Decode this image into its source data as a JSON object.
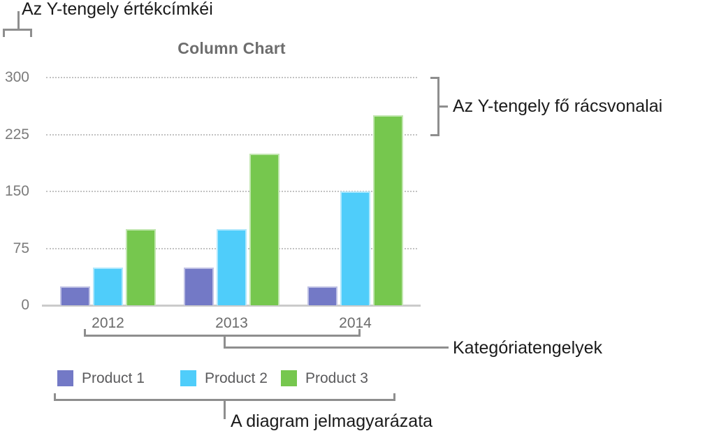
{
  "chart_data": {
    "type": "bar",
    "title": "Column Chart",
    "categories": [
      "2012",
      "2013",
      "2014"
    ],
    "series": [
      {
        "name": "Product 1",
        "color": "#7379C6",
        "values": [
          25,
          50,
          25
        ]
      },
      {
        "name": "Product 2",
        "color": "#4FCDFA",
        "values": [
          50,
          100,
          150
        ]
      },
      {
        "name": "Product 3",
        "color": "#76C74E",
        "values": [
          100,
          200,
          250
        ]
      }
    ],
    "y_ticks": [
      300,
      225,
      150,
      75,
      0
    ],
    "ylim": [
      0,
      300
    ],
    "grid": "horizontal-dotted",
    "legend_position": "bottom"
  },
  "callouts": {
    "y_axis_value_labels": "Az Y-tengely értékcímkéi",
    "y_axis_major_gridlines": "Az Y-tengely fő rácsvonalai",
    "category_axes": "Kategóriatengelyek",
    "chart_legend": "A diagram jelmagyarázata"
  },
  "colors": {
    "bracket": "#8E8E8E",
    "gridline": "#C2C2C2",
    "axis_line": "#CBCBCB",
    "title_text": "#6D6D6D",
    "y_tick_text": "#7B7B7B",
    "x_tick_text": "#6B6B6B",
    "legend_text": "#5B5B5D",
    "callout_text": "#1B1B1B"
  }
}
